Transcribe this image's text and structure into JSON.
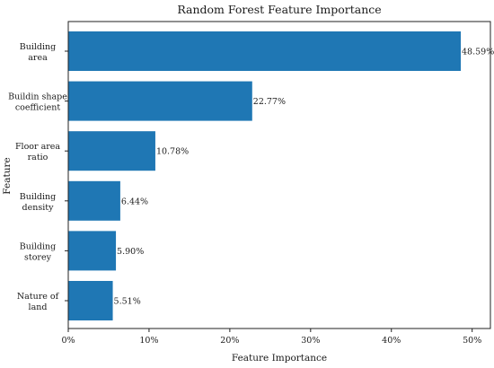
{
  "chart_data": {
    "type": "bar",
    "orientation": "horizontal",
    "title": "Random Forest Feature Importance",
    "xlabel": "Feature Importance",
    "ylabel": "Feature",
    "categories": [
      [
        "Building",
        "area"
      ],
      [
        "Buildin shape",
        "coefficient"
      ],
      [
        "Floor area",
        "ratio"
      ],
      [
        "Building",
        "density"
      ],
      [
        "Building",
        "storey"
      ],
      [
        "Nature of",
        "land"
      ]
    ],
    "values": [
      48.59,
      22.77,
      10.78,
      6.44,
      5.9,
      5.51
    ],
    "value_labels": [
      "48.59%",
      "22.77%",
      "10.78%",
      "6.44%",
      "5.90%",
      "5.51%"
    ],
    "xlim": [
      0,
      50
    ],
    "xticks": [
      0,
      10,
      20,
      30,
      40,
      50
    ],
    "xtick_labels": [
      "0%",
      "10%",
      "20%",
      "30%",
      "40%",
      "50%"
    ],
    "bar_color": "#1f77b4",
    "grid": false,
    "legend": "none"
  }
}
